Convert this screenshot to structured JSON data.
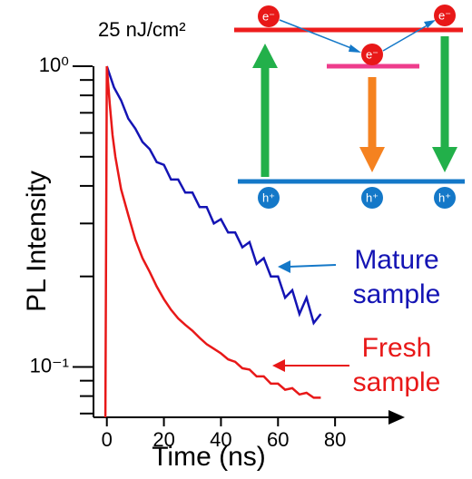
{
  "chart_data": {
    "type": "line",
    "x_label": "Time (ns)",
    "y_label": "PL Intensity",
    "xlim": [
      -5,
      100
    ],
    "xticks": [
      0,
      20,
      40,
      60,
      80
    ],
    "ylim": [
      0.068,
      1
    ],
    "ylog": true,
    "yticks": [
      {
        "value": 1,
        "label": "10⁰"
      },
      {
        "value": 0.1,
        "label": "10⁻¹"
      }
    ],
    "yminor_ticks": [
      0.07,
      0.08,
      0.09,
      0.2,
      0.3,
      0.4,
      0.5,
      0.6,
      0.7,
      0.8,
      0.9
    ],
    "series": [
      {
        "name": "Mature sample",
        "color": "#1414b4",
        "x": [
          0,
          2.5,
          5,
          7.5,
          10,
          12.5,
          15,
          17.5,
          20,
          22.5,
          25,
          27.5,
          30,
          32.5,
          35,
          37.5,
          40,
          42.5,
          45,
          47.5,
          50,
          52.5,
          55,
          57.5,
          60,
          62.5,
          65,
          67.5,
          70,
          72.5,
          75
        ],
        "values": [
          1.0,
          0.85,
          0.77,
          0.67,
          0.62,
          0.56,
          0.53,
          0.48,
          0.47,
          0.42,
          0.42,
          0.38,
          0.38,
          0.34,
          0.34,
          0.3,
          0.31,
          0.28,
          0.28,
          0.25,
          0.26,
          0.22,
          0.23,
          0.2,
          0.2,
          0.17,
          0.18,
          0.15,
          0.17,
          0.14,
          0.15
        ]
      },
      {
        "name": "Fresh sample",
        "color": "#e81818",
        "x": [
          -0.5,
          0,
          1,
          2,
          3,
          4,
          5,
          7.5,
          10,
          12.5,
          15,
          17.5,
          20,
          22.5,
          25,
          27.5,
          30,
          32.5,
          35,
          37.5,
          40,
          42.5,
          45,
          47.5,
          50,
          52.5,
          55,
          57.5,
          60,
          62.5,
          65,
          67.5,
          70,
          72.5,
          75
        ],
        "values": [
          0.068,
          1.0,
          0.75,
          0.59,
          0.5,
          0.44,
          0.39,
          0.32,
          0.265,
          0.23,
          0.207,
          0.185,
          0.168,
          0.155,
          0.145,
          0.138,
          0.132,
          0.125,
          0.119,
          0.115,
          0.111,
          0.106,
          0.104,
          0.099,
          0.098,
          0.093,
          0.093,
          0.088,
          0.088,
          0.084,
          0.085,
          0.081,
          0.082,
          0.079,
          0.079
        ]
      }
    ],
    "annotations": {
      "fluence": "25 nJ/cm²",
      "electrons": [
        "e⁻",
        "e⁻",
        "e⁻"
      ],
      "holes": [
        "h⁺",
        "h⁺",
        "h⁺"
      ]
    }
  }
}
